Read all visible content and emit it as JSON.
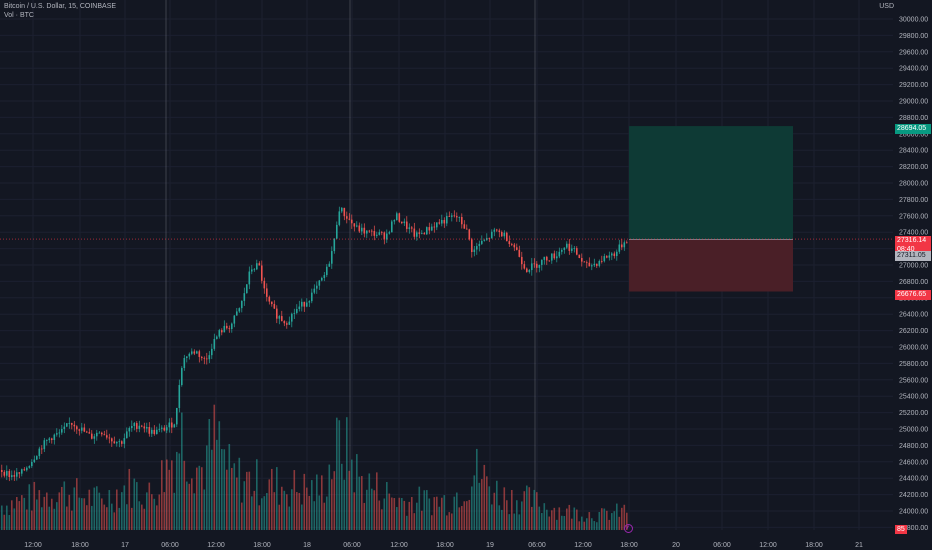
{
  "header": {
    "symbol_line": "Bitcoin / U.S. Dollar, 15, COINBASE",
    "volume_line": "Vol · BTC",
    "currency": "USD"
  },
  "price_axis": {
    "labels": [
      "30000.00",
      "29800.00",
      "29600.00",
      "29400.00",
      "29200.00",
      "29000.00",
      "28800.00",
      "28600.00",
      "28400.00",
      "28200.00",
      "28000.00",
      "27800.00",
      "27600.00",
      "27400.00",
      "27200.00",
      "27000.00",
      "26800.00",
      "26600.00",
      "26400.00",
      "26200.00",
      "26000.00",
      "25800.00",
      "25600.00",
      "25400.00",
      "25200.00",
      "25000.00",
      "24800.00",
      "24600.00",
      "24400.00",
      "24200.00",
      "24000.00",
      "23800.00"
    ],
    "target_tag": "28694.05",
    "last_price_tag": "27316.14",
    "countdown_tag": "08:40",
    "entry_tag": "27311.05",
    "stop_tag": "26676.65",
    "volume_tag": "85"
  },
  "time_axis": {
    "labels": [
      "12:00",
      "18:00",
      "17",
      "06:00",
      "12:00",
      "18:00",
      "18",
      "06:00",
      "12:00",
      "18:00",
      "19",
      "06:00",
      "12:00",
      "18:00",
      "20",
      "06:00",
      "12:00",
      "18:00",
      "21"
    ]
  },
  "colors": {
    "up": "#26a69a",
    "down": "#ef5350",
    "profit_zone": "#0e3a35",
    "loss_zone": "#4a1f27",
    "last_price_line": "#f23645",
    "session_line": "#787b86"
  },
  "icons": {
    "replay": "replay-icon"
  },
  "chart_data": {
    "type": "candlestick",
    "symbol": "BTCUSD",
    "timeframe_minutes": 15,
    "ylim": [
      23800,
      30100
    ],
    "x_categories": [
      "12:00",
      "18:00",
      "17",
      "06:00",
      "12:00",
      "18:00",
      "18",
      "06:00",
      "12:00",
      "18:00",
      "19",
      "06:00",
      "12:00",
      "18:00",
      "20",
      "06:00",
      "12:00",
      "18:00",
      "21"
    ],
    "session_separators": [
      "17",
      "18",
      "19"
    ],
    "price_path": [
      [
        0,
        24500
      ],
      [
        10,
        24430
      ],
      [
        20,
        24450
      ],
      [
        30,
        24600
      ],
      [
        40,
        24780
      ],
      [
        50,
        24900
      ],
      [
        60,
        24950
      ],
      [
        70,
        25080
      ],
      [
        80,
        25000
      ],
      [
        90,
        24900
      ],
      [
        100,
        24980
      ],
      [
        110,
        24880
      ],
      [
        120,
        24830
      ],
      [
        130,
        25020
      ],
      [
        140,
        25060
      ],
      [
        150,
        24960
      ],
      [
        160,
        24980
      ],
      [
        170,
        25050
      ],
      [
        175,
        25100
      ],
      [
        180,
        25750
      ],
      [
        185,
        25900
      ],
      [
        195,
        25950
      ],
      [
        205,
        25820
      ],
      [
        212,
        26050
      ],
      [
        220,
        26200
      ],
      [
        230,
        26260
      ],
      [
        240,
        26500
      ],
      [
        250,
        26950
      ],
      [
        258,
        27000
      ],
      [
        265,
        26600
      ],
      [
        275,
        26400
      ],
      [
        285,
        26300
      ],
      [
        295,
        26450
      ],
      [
        305,
        26550
      ],
      [
        315,
        26700
      ],
      [
        325,
        26900
      ],
      [
        333,
        27250
      ],
      [
        338,
        27700
      ],
      [
        345,
        27600
      ],
      [
        355,
        27450
      ],
      [
        365,
        27400
      ],
      [
        375,
        27380
      ],
      [
        385,
        27350
      ],
      [
        395,
        27600
      ],
      [
        405,
        27480
      ],
      [
        415,
        27350
      ],
      [
        425,
        27420
      ],
      [
        435,
        27500
      ],
      [
        445,
        27550
      ],
      [
        455,
        27600
      ],
      [
        465,
        27450
      ],
      [
        472,
        27150
      ],
      [
        478,
        27250
      ],
      [
        485,
        27300
      ],
      [
        495,
        27420
      ],
      [
        505,
        27350
      ],
      [
        515,
        27200
      ],
      [
        525,
        26950
      ],
      [
        535,
        27000
      ],
      [
        545,
        27080
      ],
      [
        555,
        27120
      ],
      [
        565,
        27250
      ],
      [
        575,
        27150
      ],
      [
        585,
        26980
      ],
      [
        595,
        27020
      ],
      [
        605,
        27100
      ],
      [
        615,
        27150
      ],
      [
        625,
        27310
      ]
    ],
    "long_position": {
      "entry": 27311.05,
      "target": 28694.05,
      "stop": 26676.65,
      "last": 27316.14,
      "countdown": "08:40"
    },
    "volume_last": 85,
    "volume_profile": [
      [
        0,
        0.25
      ],
      [
        20,
        0.3
      ],
      [
        40,
        0.35
      ],
      [
        60,
        0.4
      ],
      [
        100,
        0.3
      ],
      [
        130,
        0.45
      ],
      [
        150,
        0.35
      ],
      [
        175,
        0.8
      ],
      [
        180,
        1.0
      ],
      [
        200,
        0.6
      ],
      [
        215,
        0.95
      ],
      [
        230,
        0.55
      ],
      [
        250,
        0.5
      ],
      [
        280,
        0.45
      ],
      [
        320,
        0.4
      ],
      [
        340,
        0.9
      ],
      [
        360,
        0.5
      ],
      [
        400,
        0.3
      ],
      [
        450,
        0.3
      ],
      [
        475,
        0.6
      ],
      [
        500,
        0.35
      ],
      [
        530,
        0.3
      ],
      [
        560,
        0.2
      ],
      [
        600,
        0.15
      ],
      [
        625,
        0.2
      ]
    ]
  }
}
